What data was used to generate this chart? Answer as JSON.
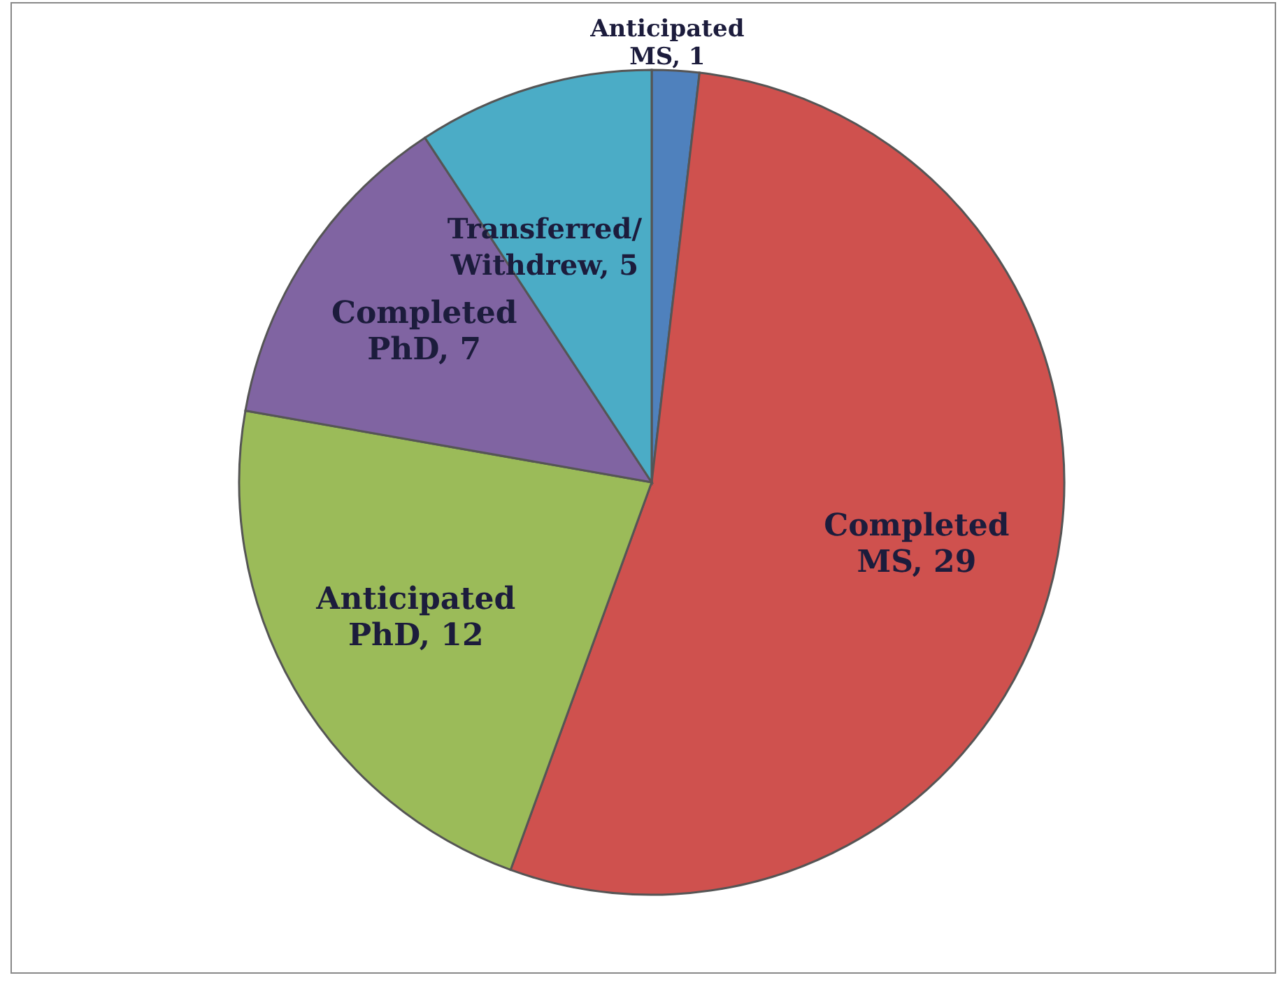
{
  "chart_data": {
    "type": "pie",
    "categories": [
      "Anticipated MS",
      "Completed MS",
      "Anticipated PhD",
      "Completed PhD",
      "Transferred/Withdrew"
    ],
    "values": [
      1,
      29,
      12,
      7,
      5
    ],
    "colors": [
      "#4f81bd",
      "#cf514e",
      "#9bbb59",
      "#8064a2",
      "#4bacc6"
    ],
    "value_labels": [
      ", 1",
      ", 29",
      ", 12",
      ", 7",
      ", 5"
    ],
    "legend": false
  }
}
